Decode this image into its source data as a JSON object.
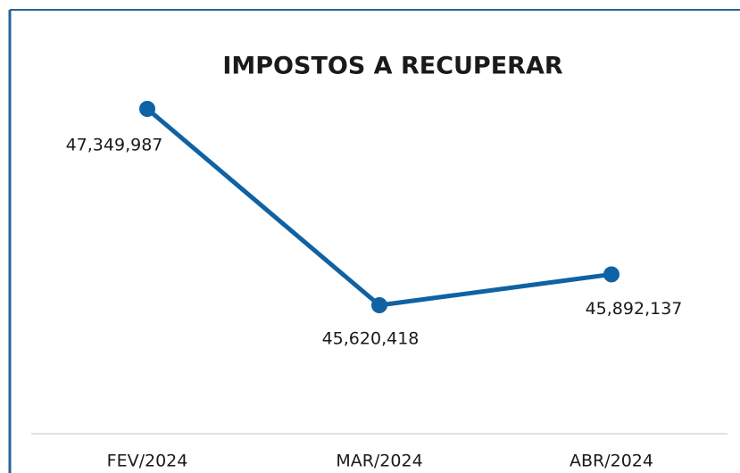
{
  "chart_data": {
    "type": "line",
    "title": "IMPOSTOS A RECUPERAR",
    "categories": [
      "FEV/2024",
      "MAR/2024",
      "ABR/2024"
    ],
    "values": [
      47349987,
      45620418,
      45892137
    ],
    "value_labels": [
      "47,349,987",
      "45,620,418",
      "45,892,137"
    ],
    "color": "#0f62a3"
  }
}
